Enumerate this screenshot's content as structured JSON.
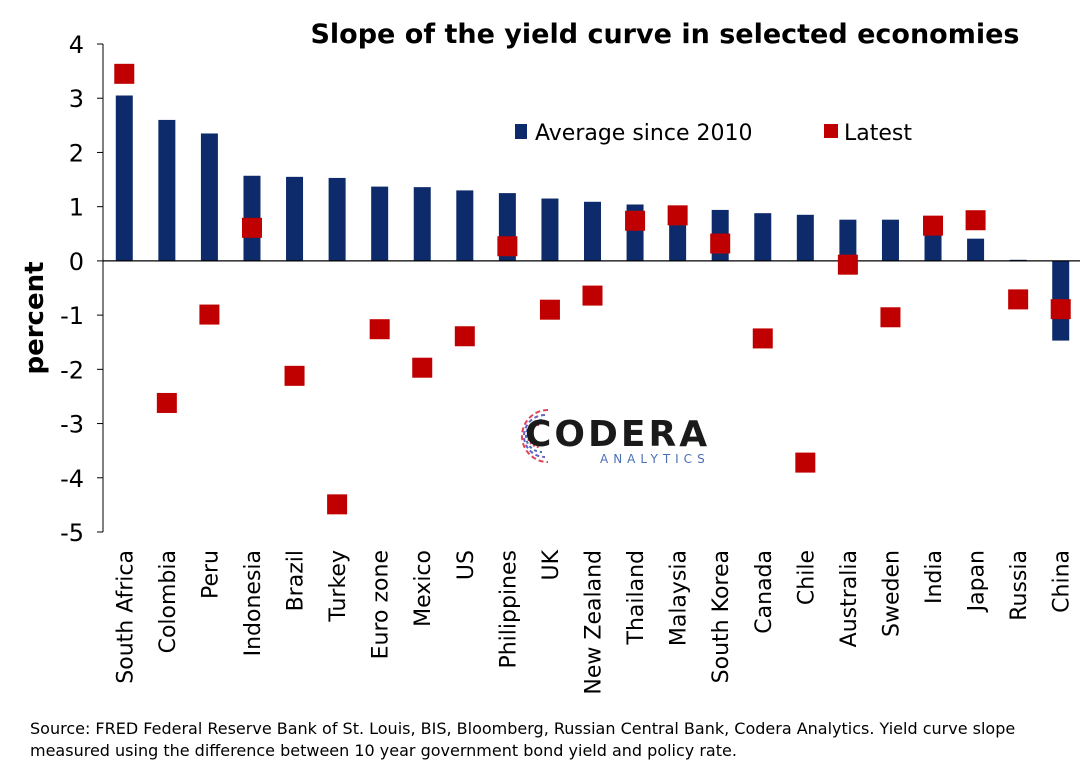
{
  "chart_data": {
    "type": "bar",
    "title": "Slope of the yield curve in selected economies",
    "ylabel": "percent",
    "ylim": [
      -5,
      4
    ],
    "yticks": [
      4,
      3,
      2,
      1,
      0,
      -1,
      -2,
      -3,
      -4,
      -5
    ],
    "categories": [
      "South Africa",
      "Colombia",
      "Peru",
      "Indonesia",
      "Brazil",
      "Turkey",
      "Euro zone",
      "Mexico",
      "US",
      "Philippines",
      "UK",
      "New Zealand",
      "Thailand",
      "Malaysia",
      "South Korea",
      "Canada",
      "Chile",
      "Australia",
      "Sweden",
      "India",
      "Japan",
      "Russia",
      "China"
    ],
    "series": [
      {
        "name": "Average since 2010",
        "type": "bar",
        "color": "#0d2a6b",
        "values": [
          3.05,
          2.6,
          2.35,
          1.57,
          1.55,
          1.53,
          1.37,
          1.36,
          1.3,
          1.25,
          1.15,
          1.09,
          1.04,
          0.88,
          0.94,
          0.88,
          0.85,
          0.76,
          0.76,
          0.66,
          0.41,
          0.02,
          -1.47
        ]
      },
      {
        "name": "Latest",
        "type": "marker",
        "color": "#c00000",
        "values": [
          3.45,
          -2.62,
          -0.99,
          0.61,
          -2.12,
          -4.49,
          -1.26,
          -1.97,
          -1.39,
          0.27,
          -0.9,
          -0.64,
          0.74,
          0.84,
          0.32,
          -1.43,
          -3.72,
          -0.07,
          -1.04,
          0.65,
          0.75,
          -0.71,
          -0.89
        ]
      }
    ],
    "legend_position": "top-center",
    "grid": false
  },
  "logo": {
    "name": "CODERA",
    "tagline": "ANALYTICS",
    "icon": "codera-swirl-icon"
  },
  "source_note": "Source: FRED Federal Reserve Bank of St. Louis, BIS, Bloomberg, Russian Central Bank, Codera Analytics. Yield curve slope measured using the difference between 10 year government bond yield and policy rate."
}
